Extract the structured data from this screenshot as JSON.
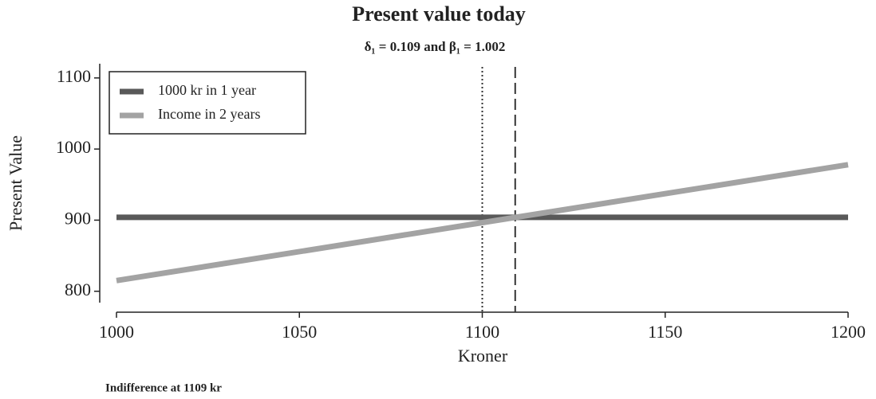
{
  "chart_data": {
    "type": "line",
    "title": "Present value today",
    "subtitle": "δ₁ = 0.109 and β₁ = 1.002",
    "x_label": "Kroner",
    "y_label": "Present Value",
    "annotation": "Indifference at 1109 kr",
    "x": [
      1000,
      1200
    ],
    "series": [
      {
        "name": "1000 kr in 1 year",
        "color": "#595959",
        "values": [
          904,
          904
        ]
      },
      {
        "name": "Income in 2 years",
        "color": "#a3a3a3",
        "values": [
          815,
          978
        ]
      }
    ],
    "vlines": [
      {
        "x": 1100,
        "style": "dotted"
      },
      {
        "x": 1109,
        "style": "dashed"
      }
    ],
    "xlim": [
      1000,
      1200
    ],
    "xticks": [
      1000,
      1050,
      1100,
      1150,
      1200
    ],
    "ylim": [
      784,
      1120
    ],
    "yticks": [
      800,
      900,
      1000,
      1100
    ],
    "legend": "upper-left",
    "grid": false
  }
}
